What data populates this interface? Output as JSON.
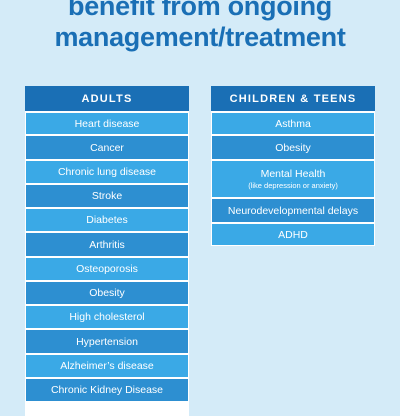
{
  "headline": {
    "line1": "benefit from ongoing",
    "line2": "management/treatment"
  },
  "adults": {
    "heading": "ADULTS",
    "items": [
      "Heart disease",
      "Cancer",
      "Chronic lung disease",
      "Stroke",
      "Diabetes",
      "Arthritis",
      "Osteoporosis",
      "Obesity",
      "High cholesterol",
      "Hypertension",
      "Alzheimer’s disease",
      "Chronic Kidney Disease"
    ]
  },
  "children": {
    "heading": "CHILDREN & TEENS",
    "items": [
      {
        "label": "Asthma",
        "note": ""
      },
      {
        "label": "Obesity",
        "note": ""
      },
      {
        "label": "Mental Health",
        "note": "(like depression or anxiety)"
      },
      {
        "label": "Neurodevelopmental delays",
        "note": ""
      },
      {
        "label": "ADHD",
        "note": ""
      }
    ]
  },
  "colors": {
    "background": "#d4ebf8",
    "header": "#1a6fb5",
    "row_light": "#3aa9e6",
    "row_dark": "#2d8fd1",
    "headline_text": "#1a6fb5"
  }
}
